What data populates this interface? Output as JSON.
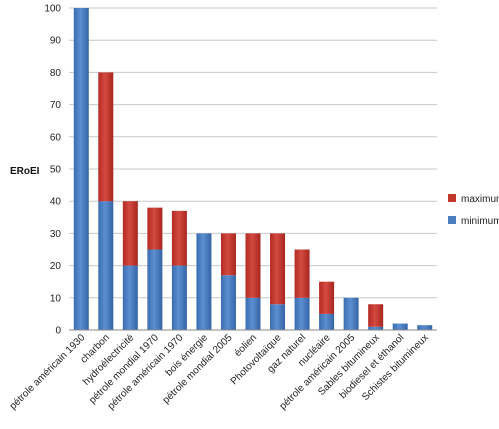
{
  "chart_data": {
    "type": "bar",
    "stacked": true,
    "title": "",
    "xlabel": "",
    "ylabel": "ERoEI",
    "ylim": [
      0,
      100
    ],
    "yticks": [
      0,
      10,
      20,
      30,
      40,
      50,
      60,
      70,
      80,
      90,
      100
    ],
    "grid": true,
    "legend_position": "right",
    "categories": [
      "pétrole américain 1930",
      "charbon",
      "hydroélectricité",
      "pétrole mondial 1970",
      "pétrole américain 1970",
      "bois énergie",
      "pétrole mondial 2005",
      "éolien",
      "Photovoltaïque",
      "gaz naturel",
      "nucléaire",
      "pétrole américain 2005",
      "Sables bitumineux",
      "biodiesel et éthanol",
      "Schistes bitumineux"
    ],
    "series": [
      {
        "name": "minimum",
        "color": "#4a7ebf",
        "values": [
          100,
          40,
          20,
          25,
          20,
          30,
          17,
          10,
          8,
          10,
          5,
          10,
          1,
          2,
          1.5
        ]
      },
      {
        "name": "maximum",
        "color": "#c0392b",
        "values": [
          0,
          40,
          20,
          13,
          17,
          0,
          13,
          20,
          22,
          15,
          10,
          0,
          7,
          0,
          0
        ]
      }
    ],
    "legend_order": [
      "maximum",
      "minimum"
    ]
  }
}
